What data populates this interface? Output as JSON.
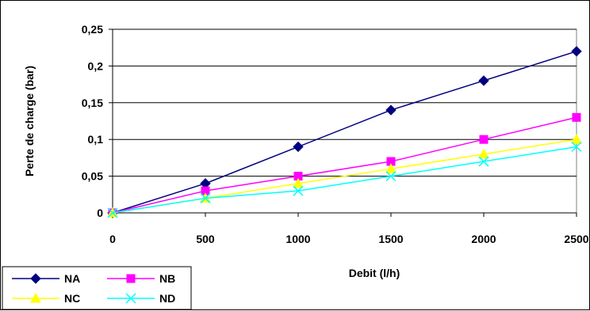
{
  "chart_data": {
    "type": "line",
    "title": "",
    "xlabel": "Debit (l/h)",
    "ylabel": "Perte de charge (bar)",
    "x": [
      0,
      500,
      1000,
      1500,
      2000,
      2500
    ],
    "x_ticks": [
      "0",
      "500",
      "1000",
      "1500",
      "2000",
      "2500"
    ],
    "y_ticks": [
      "0",
      "0,05",
      "0,1",
      "0,15",
      "0,2",
      "0,25"
    ],
    "xlim": [
      0,
      2500
    ],
    "ylim": [
      0,
      0.25
    ],
    "grid": "horizontal",
    "legend_position": "bottom-left",
    "series": [
      {
        "name": "NA",
        "color": "#000080",
        "marker": "diamond",
        "values": [
          0,
          0.04,
          0.09,
          0.14,
          0.18,
          0.22
        ]
      },
      {
        "name": "NB",
        "color": "#FF00FF",
        "marker": "square",
        "values": [
          0,
          0.03,
          0.05,
          0.07,
          0.1,
          0.13
        ]
      },
      {
        "name": "NC",
        "color": "#FFFF00",
        "marker": "triangle",
        "values": [
          0,
          0.02,
          0.04,
          0.06,
          0.08,
          0.1
        ]
      },
      {
        "name": "ND",
        "color": "#00FFFF",
        "marker": "x",
        "values": [
          0,
          0.02,
          0.03,
          0.05,
          0.07,
          0.09
        ]
      }
    ]
  }
}
